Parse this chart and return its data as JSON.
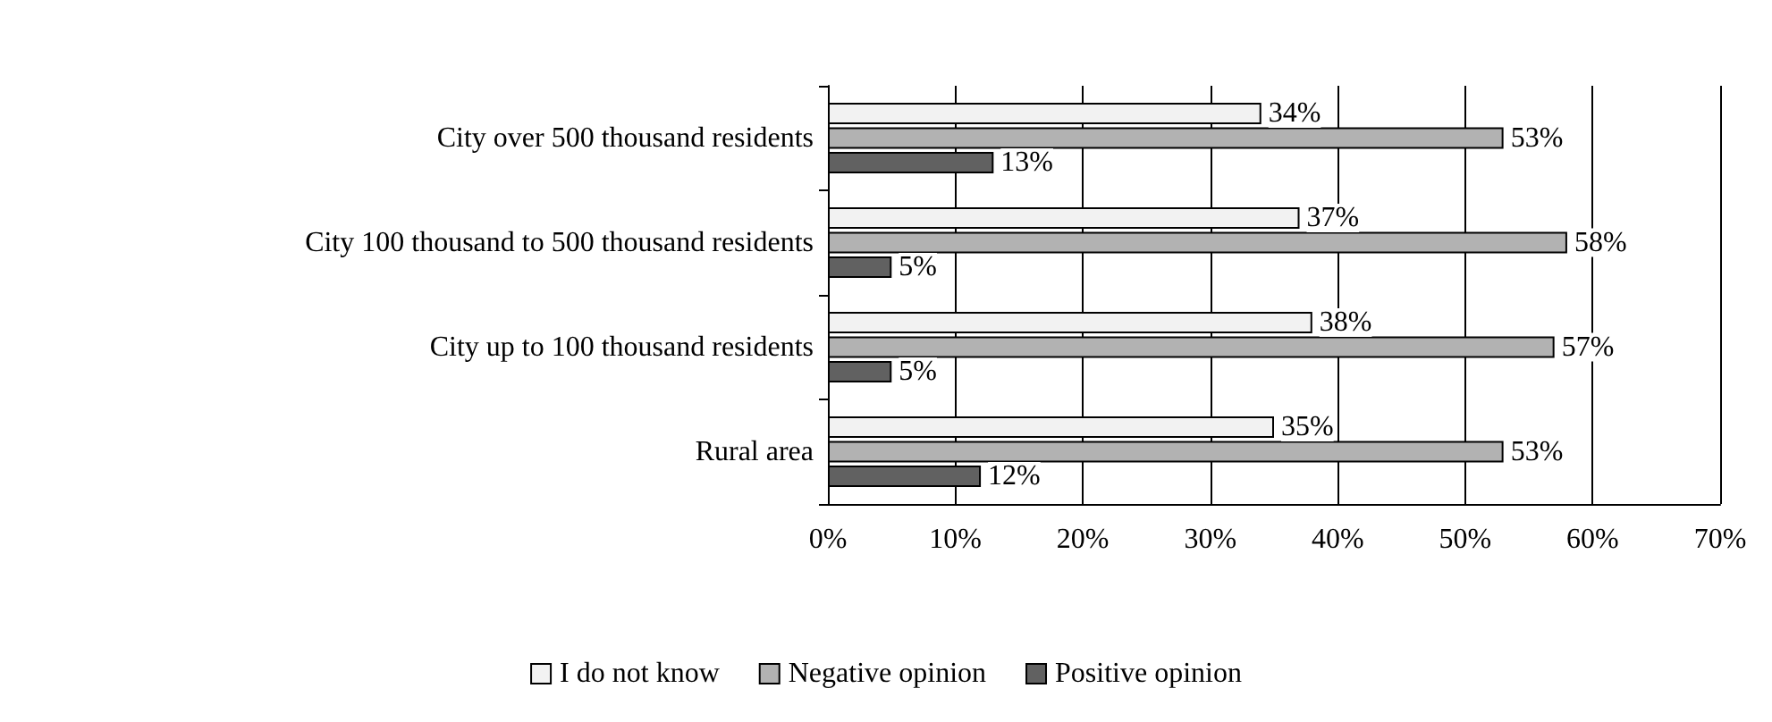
{
  "chart_data": {
    "type": "bar",
    "orientation": "horizontal",
    "categories": [
      "City over 500 thousand residents",
      "City 100 thousand to 500 thousand residents",
      "City up to 100 thousand residents",
      "Rural area"
    ],
    "series": [
      {
        "name": "I do not know",
        "color": "#f2f2f2",
        "values": [
          34,
          37,
          38,
          35
        ],
        "value_labels": [
          "34%",
          "37%",
          "38%",
          "35%"
        ]
      },
      {
        "name": "Negative opinion",
        "color": "#b2b2b2",
        "values": [
          53,
          58,
          57,
          53
        ],
        "value_labels": [
          "53%",
          "58%",
          "57%",
          "53%"
        ]
      },
      {
        "name": "Positive opinion",
        "color": "#616161",
        "values": [
          13,
          5,
          5,
          12
        ],
        "value_labels": [
          "13%",
          "5%",
          "5%",
          "12%"
        ]
      }
    ],
    "xlim": [
      0,
      70
    ],
    "xticks": [
      {
        "value": 0,
        "label": "0%"
      },
      {
        "value": 10,
        "label": "10%"
      },
      {
        "value": 20,
        "label": "20%"
      },
      {
        "value": 30,
        "label": "30%"
      },
      {
        "value": 40,
        "label": "40%"
      },
      {
        "value": 50,
        "label": "50%"
      },
      {
        "value": 60,
        "label": "60%"
      },
      {
        "value": 70,
        "label": "70%"
      }
    ],
    "grid": "x",
    "legend": "bottom"
  }
}
